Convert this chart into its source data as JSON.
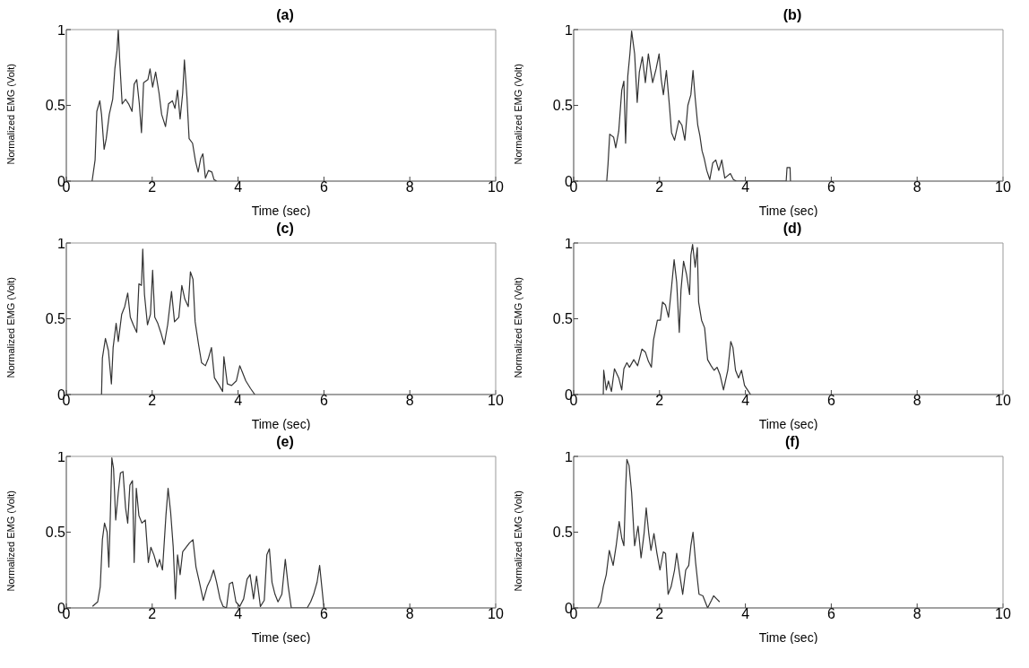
{
  "chart_data": [
    {
      "type": "line",
      "title": "(a)",
      "xlabel": "Time (sec)",
      "ylabel": "Normalized EMG (Volt)",
      "xlim": [
        0,
        10
      ],
      "xticks": [
        0,
        2,
        4,
        6,
        8,
        10
      ],
      "ylim": [
        0,
        1
      ],
      "yticks": [
        0,
        0.5,
        1
      ],
      "series": [
        {
          "color": "#333333",
          "x": [
            0.6,
            0.67,
            0.71,
            0.78,
            0.82,
            0.88,
            0.93,
            1.0,
            1.08,
            1.13,
            1.18,
            1.21,
            1.25,
            1.3,
            1.38,
            1.45,
            1.53,
            1.58,
            1.64,
            1.7,
            1.75,
            1.8,
            1.9,
            1.95,
            2.01,
            2.08,
            2.16,
            2.22,
            2.31,
            2.38,
            2.47,
            2.53,
            2.59,
            2.65,
            2.71,
            2.75,
            2.81,
            2.86,
            2.94,
            3.01,
            3.07,
            3.13,
            3.18,
            3.24,
            3.31,
            3.39,
            3.44,
            3.5
          ],
          "values": [
            0,
            0.14,
            0.46,
            0.53,
            0.44,
            0.21,
            0.28,
            0.44,
            0.54,
            0.74,
            0.86,
            1.0,
            0.76,
            0.51,
            0.54,
            0.51,
            0.46,
            0.64,
            0.67,
            0.51,
            0.32,
            0.65,
            0.67,
            0.74,
            0.62,
            0.72,
            0.58,
            0.44,
            0.36,
            0.51,
            0.53,
            0.48,
            0.6,
            0.41,
            0.58,
            0.8,
            0.55,
            0.28,
            0.25,
            0.13,
            0.06,
            0.15,
            0.18,
            0.02,
            0.07,
            0.06,
            0.01,
            0
          ]
        }
      ]
    },
    {
      "type": "line",
      "title": "(b)",
      "xlabel": "Time (sec)",
      "ylabel": "Normalized EMG (Volt)",
      "xlim": [
        0,
        10
      ],
      "xticks": [
        0,
        2,
        4,
        6,
        8,
        10
      ],
      "ylim": [
        0,
        1
      ],
      "yticks": [
        0,
        0.5,
        1
      ],
      "series": [
        {
          "color": "#333333",
          "x": [
            0.77,
            0.8,
            0.84,
            0.93,
            0.98,
            1.05,
            1.12,
            1.17,
            1.21,
            1.26,
            1.31,
            1.35,
            1.42,
            1.48,
            1.53,
            1.6,
            1.67,
            1.74,
            1.79,
            1.84,
            1.92,
            1.99,
            2.04,
            2.09,
            2.16,
            2.23,
            2.28,
            2.35,
            2.45,
            2.52,
            2.59,
            2.66,
            2.73,
            2.78,
            2.83,
            2.89,
            2.94,
            2.99,
            3.04,
            3.1,
            3.17,
            3.24,
            3.31,
            3.38,
            3.45,
            3.52,
            3.65,
            3.72,
            3.79,
            4.95,
            4.97,
            5.04,
            5.05
          ],
          "values": [
            0,
            0.11,
            0.31,
            0.29,
            0.22,
            0.33,
            0.6,
            0.66,
            0.25,
            0.69,
            0.84,
            0.99,
            0.84,
            0.52,
            0.72,
            0.82,
            0.65,
            0.84,
            0.74,
            0.65,
            0.74,
            0.84,
            0.67,
            0.57,
            0.73,
            0.5,
            0.32,
            0.27,
            0.4,
            0.37,
            0.27,
            0.5,
            0.57,
            0.73,
            0.55,
            0.37,
            0.3,
            0.2,
            0.15,
            0.07,
            0.01,
            0.12,
            0.14,
            0.07,
            0.14,
            0.02,
            0.05,
            0.01,
            0,
            0,
            0.09,
            0.09,
            0
          ]
        }
      ]
    },
    {
      "type": "line",
      "title": "(c)",
      "xlabel": "Time (sec)",
      "ylabel": "Normalized EMG (Volt)",
      "xlim": [
        0,
        10
      ],
      "xticks": [
        0,
        2,
        4,
        6,
        8,
        10
      ],
      "ylim": [
        0,
        1
      ],
      "yticks": [
        0,
        0.5,
        1
      ],
      "series": [
        {
          "color": "#333333",
          "x": [
            0.82,
            0.84,
            0.91,
            0.98,
            1.05,
            1.09,
            1.16,
            1.21,
            1.29,
            1.36,
            1.43,
            1.49,
            1.56,
            1.64,
            1.69,
            1.75,
            1.78,
            1.82,
            1.89,
            1.96,
            2.01,
            2.06,
            2.13,
            2.2,
            2.28,
            2.36,
            2.45,
            2.52,
            2.62,
            2.69,
            2.76,
            2.84,
            2.89,
            2.95,
            3.0,
            3.08,
            3.15,
            3.24,
            3.31,
            3.38,
            3.45,
            3.56,
            3.64,
            3.67,
            3.75,
            3.85,
            3.96,
            4.04,
            4.11,
            4.18,
            4.29,
            4.39
          ],
          "values": [
            0,
            0.24,
            0.37,
            0.29,
            0.07,
            0.31,
            0.47,
            0.35,
            0.53,
            0.58,
            0.67,
            0.51,
            0.46,
            0.41,
            0.73,
            0.72,
            0.96,
            0.66,
            0.46,
            0.53,
            0.82,
            0.51,
            0.47,
            0.41,
            0.33,
            0.46,
            0.68,
            0.48,
            0.51,
            0.72,
            0.63,
            0.58,
            0.81,
            0.76,
            0.48,
            0.33,
            0.21,
            0.19,
            0.24,
            0.31,
            0.11,
            0.06,
            0.02,
            0.25,
            0.07,
            0.06,
            0.09,
            0.19,
            0.14,
            0.09,
            0.04,
            0
          ]
        }
      ]
    },
    {
      "type": "line",
      "title": "(d)",
      "xlabel": "Time (sec)",
      "ylabel": "Normalized EMG (Volt)",
      "xlim": [
        0,
        10
      ],
      "xticks": [
        0,
        2,
        4,
        6,
        8,
        10
      ],
      "ylim": [
        0,
        1
      ],
      "yticks": [
        0,
        0.5,
        1
      ],
      "series": [
        {
          "color": "#333333",
          "x": [
            0.69,
            0.7,
            0.76,
            0.81,
            0.88,
            0.95,
            1.05,
            1.12,
            1.17,
            1.24,
            1.3,
            1.4,
            1.49,
            1.59,
            1.67,
            1.74,
            1.81,
            1.86,
            1.95,
            2.02,
            2.07,
            2.14,
            2.21,
            2.28,
            2.34,
            2.4,
            2.46,
            2.5,
            2.56,
            2.63,
            2.7,
            2.73,
            2.77,
            2.83,
            2.88,
            2.91,
            2.98,
            3.05,
            3.12,
            3.2,
            3.27,
            3.34,
            3.41,
            3.49,
            3.59,
            3.66,
            3.71,
            3.77,
            3.84,
            3.91,
            3.98,
            4.05,
            4.12
          ],
          "values": [
            0,
            0.16,
            0.03,
            0.09,
            0.02,
            0.17,
            0.11,
            0.03,
            0.17,
            0.21,
            0.18,
            0.23,
            0.19,
            0.3,
            0.28,
            0.22,
            0.18,
            0.36,
            0.49,
            0.49,
            0.61,
            0.59,
            0.51,
            0.71,
            0.89,
            0.74,
            0.41,
            0.69,
            0.88,
            0.79,
            0.66,
            0.92,
            0.99,
            0.84,
            0.97,
            0.61,
            0.49,
            0.44,
            0.23,
            0.19,
            0.16,
            0.18,
            0.13,
            0.03,
            0.16,
            0.35,
            0.31,
            0.16,
            0.11,
            0.16,
            0.06,
            0.03,
            0
          ]
        }
      ]
    },
    {
      "type": "line",
      "title": "(e)",
      "xlabel": "Time (sec)",
      "ylabel": "Normalized EMG (Volt)",
      "xlim": [
        0,
        10
      ],
      "xticks": [
        0,
        2,
        4,
        6,
        8,
        10
      ],
      "ylim": [
        0,
        1
      ],
      "yticks": [
        0,
        0.5,
        1
      ],
      "series": [
        {
          "color": "#333333",
          "x": [
            0.61,
            0.73,
            0.79,
            0.84,
            0.89,
            0.95,
            0.99,
            1.02,
            1.06,
            1.1,
            1.15,
            1.21,
            1.26,
            1.32,
            1.38,
            1.43,
            1.48,
            1.54,
            1.58,
            1.63,
            1.69,
            1.76,
            1.84,
            1.91,
            1.97,
            2.04,
            2.12,
            2.17,
            2.24,
            2.32,
            2.37,
            2.43,
            2.49,
            2.54,
            2.59,
            2.65,
            2.71,
            2.79,
            2.87,
            2.95,
            3.02,
            3.1,
            3.19,
            3.28,
            3.36,
            3.43,
            3.5,
            3.58,
            3.65,
            3.73,
            3.8,
            3.87,
            3.95,
            4.04,
            4.13,
            4.21,
            4.28,
            4.36,
            4.43,
            4.52,
            4.61,
            4.67,
            4.73,
            4.79,
            4.86,
            4.93,
            5.02,
            5.1,
            5.17,
            5.24,
            5.61,
            5.69,
            5.76,
            5.84,
            5.9,
            5.95,
            6.0
          ],
          "values": [
            0.01,
            0.04,
            0.14,
            0.45,
            0.56,
            0.5,
            0.27,
            0.56,
            0.99,
            0.92,
            0.58,
            0.76,
            0.89,
            0.9,
            0.66,
            0.56,
            0.81,
            0.84,
            0.3,
            0.79,
            0.61,
            0.56,
            0.58,
            0.3,
            0.4,
            0.35,
            0.27,
            0.32,
            0.25,
            0.61,
            0.79,
            0.63,
            0.4,
            0.06,
            0.35,
            0.22,
            0.37,
            0.4,
            0.43,
            0.45,
            0.27,
            0.17,
            0.05,
            0.14,
            0.19,
            0.25,
            0.17,
            0.06,
            0.01,
            0,
            0.16,
            0.17,
            0.04,
            0.01,
            0.06,
            0.19,
            0.22,
            0.06,
            0.21,
            0.01,
            0.05,
            0.35,
            0.39,
            0.17,
            0.09,
            0.04,
            0.09,
            0.32,
            0.14,
            0,
            0,
            0.04,
            0.09,
            0.17,
            0.28,
            0.14,
            0
          ]
        }
      ]
    },
    {
      "type": "line",
      "title": "(f)",
      "xlabel": "Time (sec)",
      "ylabel": "Normalized EMG (Volt)",
      "xlim": [
        0,
        10
      ],
      "xticks": [
        0,
        2,
        4,
        6,
        8,
        10
      ],
      "ylim": [
        0,
        1
      ],
      "yticks": [
        0,
        0.5,
        1
      ],
      "series": [
        {
          "color": "#333333",
          "x": [
            0.56,
            0.63,
            0.69,
            0.76,
            0.83,
            0.92,
            0.99,
            1.06,
            1.12,
            1.17,
            1.21,
            1.24,
            1.29,
            1.35,
            1.42,
            1.5,
            1.57,
            1.64,
            1.69,
            1.75,
            1.8,
            1.87,
            1.94,
            2.01,
            2.09,
            2.14,
            2.2,
            2.27,
            2.35,
            2.4,
            2.47,
            2.54,
            2.61,
            2.68,
            2.73,
            2.78,
            2.84,
            2.92,
            3.01,
            3.12,
            3.21,
            3.26,
            3.33,
            3.4
          ],
          "values": [
            0,
            0.04,
            0.14,
            0.22,
            0.38,
            0.28,
            0.41,
            0.57,
            0.46,
            0.41,
            0.78,
            0.98,
            0.94,
            0.76,
            0.41,
            0.54,
            0.33,
            0.49,
            0.66,
            0.49,
            0.38,
            0.49,
            0.36,
            0.25,
            0.37,
            0.36,
            0.09,
            0.14,
            0.25,
            0.36,
            0.22,
            0.09,
            0.25,
            0.28,
            0.41,
            0.5,
            0.3,
            0.09,
            0.08,
            0,
            0.05,
            0.08,
            0.06,
            0.04
          ]
        }
      ]
    }
  ]
}
